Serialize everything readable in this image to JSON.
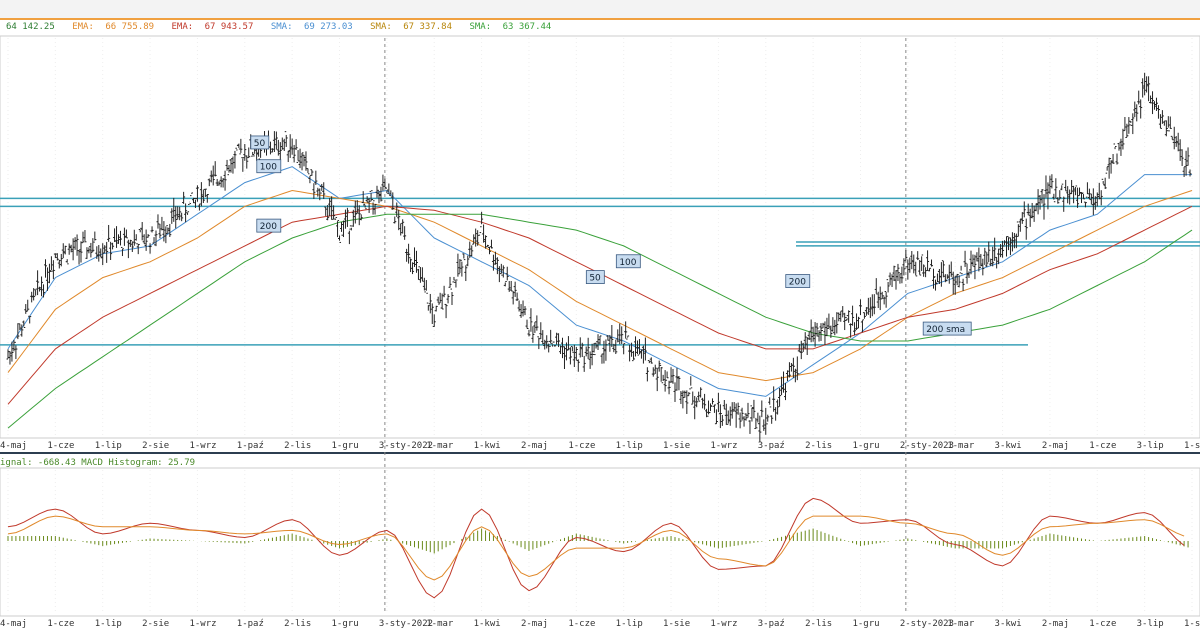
{
  "indicators": [
    {
      "name": "",
      "value": "64 142.25",
      "color": "#2e7d32"
    },
    {
      "name": "EMA:",
      "value": "66 755.89",
      "color": "#e0892b"
    },
    {
      "name": "EMA:",
      "value": "67 943.57",
      "color": "#c0392b"
    },
    {
      "name": "SMA:",
      "value": "69 273.03",
      "color": "#4a8fd1"
    },
    {
      "name": "SMA:",
      "value": "67 337.84",
      "color": "#b8860b"
    },
    {
      "name": "SMA:",
      "value": "63 367.44",
      "color": "#3aa13a"
    }
  ],
  "macd_legend": "ignal: -668.43 MACD Histogram: 25.79",
  "xaxis_labels": [
    "4-maj",
    "1-cze",
    "1-lip",
    "2-sie",
    "1-wrz",
    "1-paź",
    "2-lis",
    "1-gru",
    "3-sty-2022",
    "1-mar",
    "1-kwi",
    "2-maj",
    "1-cze",
    "1-lip",
    "1-sie",
    "1-wrz",
    "3-paź",
    "2-lis",
    "1-gru",
    "2-sty-2023",
    "1-mar",
    "3-kwi",
    "2-maj",
    "1-cze",
    "3-lip",
    "1-sie"
  ],
  "annotations": {
    "ma_tags_2021": [
      "50",
      "100",
      "200"
    ],
    "ma_tags_2022": [
      "50",
      "100",
      "200"
    ],
    "sma_tag": "200 sma"
  },
  "colors": {
    "ema_green": "#2e7d32",
    "ema_orange": "#e0892b",
    "ema_red": "#c0392b",
    "sma_blue": "#4a8fd1",
    "sma_olive": "#b8860b",
    "sma_green": "#3aa13a",
    "support_line": "#3aa0b8",
    "candle": "#222222",
    "macd": "#c0392b",
    "signal": "#e0892b",
    "histogram": "#6a8a1a"
  },
  "chart_data": [
    {
      "type": "line",
      "subtype": "ohlc-price",
      "x": [
        "4-maj",
        "1-cze",
        "1-lip",
        "2-sie",
        "1-wrz",
        "1-paź",
        "2-lis",
        "1-gru",
        "3-sty-2022",
        "1-mar",
        "1-kwi",
        "2-maj",
        "1-cze",
        "1-lip",
        "1-sie",
        "1-wrz",
        "3-paź",
        "2-lis",
        "1-gru",
        "2-sty-2023",
        "1-mar",
        "3-kwi",
        "2-maj",
        "1-cze",
        "3-lip",
        "1-sie"
      ],
      "series": [
        {
          "name": "price",
          "values": [
            0.2,
            0.46,
            0.48,
            0.5,
            0.6,
            0.72,
            0.74,
            0.52,
            0.62,
            0.3,
            0.52,
            0.28,
            0.2,
            0.24,
            0.14,
            0.06,
            0.04,
            0.26,
            0.3,
            0.44,
            0.4,
            0.48,
            0.62,
            0.6,
            0.88,
            0.66
          ]
        },
        {
          "name": "ma50",
          "values": [
            0.22,
            0.4,
            0.46,
            0.48,
            0.56,
            0.64,
            0.68,
            0.6,
            0.62,
            0.5,
            0.44,
            0.38,
            0.28,
            0.24,
            0.18,
            0.12,
            0.1,
            0.18,
            0.26,
            0.36,
            0.4,
            0.44,
            0.52,
            0.56,
            0.66,
            0.66
          ]
        },
        {
          "name": "ma100",
          "values": [
            0.16,
            0.32,
            0.4,
            0.44,
            0.5,
            0.58,
            0.62,
            0.6,
            0.58,
            0.54,
            0.48,
            0.42,
            0.34,
            0.28,
            0.22,
            0.16,
            0.14,
            0.16,
            0.22,
            0.3,
            0.36,
            0.4,
            0.46,
            0.52,
            0.58,
            0.62
          ]
        },
        {
          "name": "ma200",
          "values": [
            0.08,
            0.22,
            0.3,
            0.36,
            0.42,
            0.48,
            0.54,
            0.56,
            0.58,
            0.57,
            0.54,
            0.5,
            0.44,
            0.38,
            0.32,
            0.26,
            0.22,
            0.22,
            0.26,
            0.3,
            0.32,
            0.36,
            0.42,
            0.46,
            0.52,
            0.58
          ]
        },
        {
          "name": "sma200",
          "values": [
            0.02,
            0.12,
            0.2,
            0.28,
            0.36,
            0.44,
            0.5,
            0.54,
            0.56,
            0.56,
            0.56,
            0.54,
            0.52,
            0.48,
            0.42,
            0.36,
            0.3,
            0.26,
            0.24,
            0.24,
            0.26,
            0.28,
            0.32,
            0.38,
            0.44,
            0.52
          ]
        }
      ]
    },
    {
      "type": "bar",
      "subtype": "macd",
      "x": [
        "4-maj",
        "1-cze",
        "1-lip",
        "2-sie",
        "1-wrz",
        "1-paź",
        "2-lis",
        "1-gru",
        "3-sty-2022",
        "1-mar",
        "1-kwi",
        "2-maj",
        "1-cze",
        "1-lip",
        "1-sie",
        "1-wrz",
        "3-paź",
        "2-lis",
        "1-gru",
        "2-sty-2023",
        "1-mar",
        "3-kwi",
        "2-maj",
        "1-cze",
        "3-lip",
        "1-sie"
      ],
      "series": [
        {
          "name": "MACD",
          "values": [
            0.4,
            0.9,
            0.2,
            0.5,
            0.3,
            0.1,
            0.6,
            -0.4,
            0.3,
            -1.6,
            0.9,
            -1.4,
            0.1,
            -0.3,
            0.5,
            -0.8,
            -0.7,
            1.2,
            0.5,
            0.6,
            -0.1,
            -0.7,
            0.7,
            0.5,
            0.8,
            -0.2
          ]
        },
        {
          "name": "Signal",
          "values": [
            0.2,
            0.7,
            0.4,
            0.4,
            0.3,
            0.2,
            0.3,
            -0.1,
            0.2,
            -1.1,
            0.4,
            -1.0,
            -0.2,
            -0.2,
            0.3,
            -0.5,
            -0.7,
            0.7,
            0.7,
            0.5,
            0.2,
            -0.4,
            0.4,
            0.5,
            0.6,
            0.1
          ]
        },
        {
          "name": "Histogram",
          "values": [
            0.2,
            0.2,
            -0.2,
            0.1,
            0.0,
            -0.1,
            0.3,
            -0.3,
            0.1,
            -0.5,
            0.5,
            -0.4,
            0.3,
            -0.1,
            0.2,
            -0.3,
            0.0,
            0.5,
            -0.2,
            0.1,
            -0.3,
            -0.3,
            0.3,
            0.0,
            0.2,
            -0.3
          ]
        }
      ]
    }
  ]
}
